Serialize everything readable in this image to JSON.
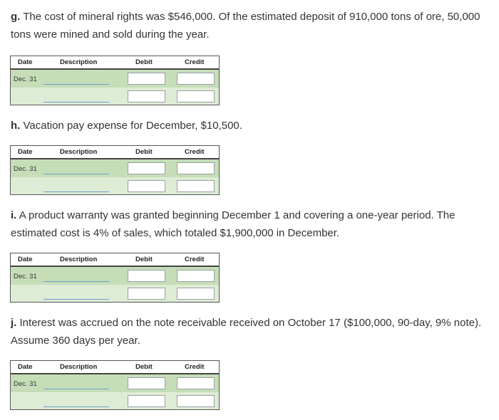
{
  "problems": [
    {
      "letter": "g.",
      "text": "The cost of mineral rights was $546,000. Of the estimated deposit of 910,000 tons of ore, 50,000 tons were mined and sold during the year."
    },
    {
      "letter": "h.",
      "text": "Vacation pay expense for December, $10,500."
    },
    {
      "letter": "i.",
      "text": "A product warranty was granted beginning December 1 and covering a one-year period. The estimated cost is 4% of sales, which totaled $1,900,000 in December."
    },
    {
      "letter": "j.",
      "text": "Interest was accrued on the note receivable received on October 17 ($100,000, 90-day, 9% note). Assume 360 days per year."
    }
  ],
  "table_headers": {
    "date": "Date",
    "description": "Description",
    "debit": "Debit",
    "credit": "Credit"
  },
  "entry_date": "Dec. 31"
}
